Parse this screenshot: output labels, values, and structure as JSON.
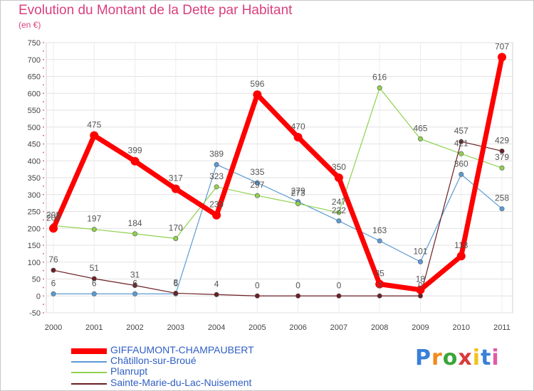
{
  "chart_data": {
    "type": "line",
    "title": "Evolution du Montant de la Dette par Habitant",
    "subtitle": "(en €)",
    "categories": [
      "2000",
      "2001",
      "2002",
      "2003",
      "2004",
      "2005",
      "2006",
      "2007",
      "2008",
      "2009",
      "2010",
      "2011"
    ],
    "ylim": [
      -50,
      750
    ],
    "yticks": [
      -50,
      0,
      50,
      100,
      150,
      200,
      250,
      300,
      350,
      400,
      450,
      500,
      550,
      600,
      650,
      700,
      750
    ],
    "grid": true,
    "legend_position": "bottom-left",
    "series": [
      {
        "name": "GIFFAUMONT-CHAMPAUBERT",
        "color": "#ff0000",
        "width": 7,
        "values": [
          200,
          475,
          399,
          317,
          239,
          596,
          470,
          350,
          35,
          18,
          118,
          707
        ]
      },
      {
        "name": "Châtillon-sur-Broué",
        "color": "#5b9bd5",
        "width": 1.2,
        "values": [
          6,
          6,
          6,
          6,
          389,
          335,
          279,
          222,
          163,
          101,
          360,
          258
        ]
      },
      {
        "name": "Planrupt",
        "color": "#8fd14f",
        "width": 1.2,
        "values": [
          208,
          197,
          184,
          170,
          323,
          297,
          273,
          247,
          616,
          465,
          421,
          379
        ]
      },
      {
        "name": "Sainte-Marie-du-Lac-Nuisement",
        "color": "#6b1f24",
        "width": 1.2,
        "values": [
          76,
          51,
          31,
          8,
          4,
          0,
          0,
          0,
          0,
          0,
          457,
          429
        ]
      }
    ]
  },
  "logo": {
    "letters": [
      "P",
      "r",
      "o",
      "x",
      "i",
      "t",
      "i"
    ]
  }
}
